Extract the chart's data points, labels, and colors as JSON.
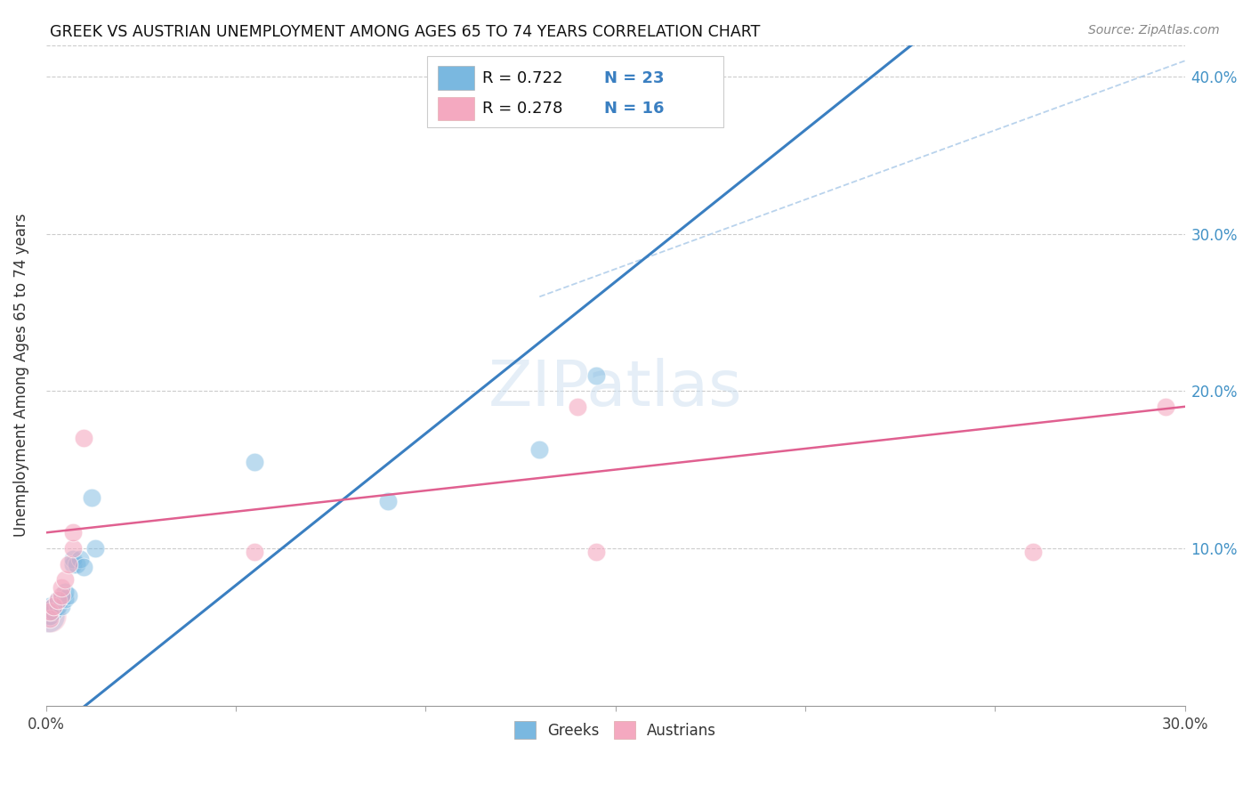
{
  "title": "GREEK VS AUSTRIAN UNEMPLOYMENT AMONG AGES 65 TO 74 YEARS CORRELATION CHART",
  "source": "Source: ZipAtlas.com",
  "ylabel": "Unemployment Among Ages 65 to 74 years",
  "xlim": [
    0.0,
    0.3
  ],
  "ylim": [
    0.0,
    0.42
  ],
  "xtick_vals": [
    0.0,
    0.05,
    0.1,
    0.15,
    0.2,
    0.25,
    0.3
  ],
  "xtick_labels": [
    "0.0%",
    "",
    "",
    "",
    "",
    "",
    "30.0%"
  ],
  "ytick_vals": [
    0.0,
    0.1,
    0.2,
    0.3,
    0.4
  ],
  "ytick_labels": [
    "",
    "10.0%",
    "20.0%",
    "30.0%",
    "40.0%"
  ],
  "greek_color": "#7ab8e0",
  "austrian_color": "#f4a9c0",
  "greek_scatter": [
    [
      0.001,
      0.057
    ],
    [
      0.001,
      0.06
    ],
    [
      0.001,
      0.063
    ],
    [
      0.002,
      0.06
    ],
    [
      0.002,
      0.063
    ],
    [
      0.003,
      0.063
    ],
    [
      0.003,
      0.067
    ],
    [
      0.004,
      0.063
    ],
    [
      0.004,
      0.068
    ],
    [
      0.005,
      0.068
    ],
    [
      0.005,
      0.072
    ],
    [
      0.006,
      0.07
    ],
    [
      0.007,
      0.09
    ],
    [
      0.007,
      0.093
    ],
    [
      0.008,
      0.09
    ],
    [
      0.009,
      0.093
    ],
    [
      0.01,
      0.088
    ],
    [
      0.012,
      0.132
    ],
    [
      0.013,
      0.1
    ],
    [
      0.055,
      0.155
    ],
    [
      0.09,
      0.13
    ],
    [
      0.13,
      0.163
    ],
    [
      0.145,
      0.21
    ]
  ],
  "austrian_scatter": [
    [
      0.001,
      0.055
    ],
    [
      0.001,
      0.06
    ],
    [
      0.002,
      0.063
    ],
    [
      0.003,
      0.067
    ],
    [
      0.004,
      0.07
    ],
    [
      0.004,
      0.075
    ],
    [
      0.005,
      0.08
    ],
    [
      0.006,
      0.09
    ],
    [
      0.007,
      0.1
    ],
    [
      0.007,
      0.11
    ],
    [
      0.01,
      0.17
    ],
    [
      0.055,
      0.098
    ],
    [
      0.14,
      0.19
    ],
    [
      0.145,
      0.098
    ],
    [
      0.26,
      0.098
    ],
    [
      0.295,
      0.19
    ]
  ],
  "greek_R": 0.722,
  "greek_N": 23,
  "austrian_R": 0.278,
  "austrian_N": 16,
  "greek_line_color": "#3a7fc1",
  "austrian_line_color": "#e06090",
  "diag_line_color": "#a8c8e8",
  "watermark": "ZIPatlas",
  "bg_color": "#ffffff"
}
